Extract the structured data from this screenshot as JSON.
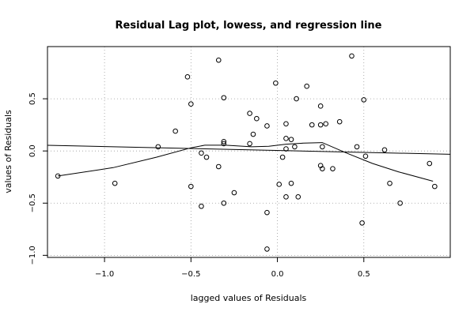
{
  "chart_data": {
    "type": "scatter",
    "title": "Residual Lag plot, lowess, and regression line",
    "xlabel": "lagged values of Residuals",
    "ylabel": "values of Residuals",
    "xlim": [
      -1.33,
      1.0
    ],
    "ylim": [
      -1.02,
      1.0
    ],
    "x_ticks": [
      {
        "value": -1.0,
        "label": "−1.0"
      },
      {
        "value": -0.5,
        "label": "−0.5"
      },
      {
        "value": 0.0,
        "label": "0.0"
      },
      {
        "value": 0.5,
        "label": "0.5"
      }
    ],
    "y_ticks": [
      {
        "value": -1.0,
        "label": "−1.0"
      },
      {
        "value": -0.5,
        "label": "−0.5"
      },
      {
        "value": 0.0,
        "label": "0.0"
      },
      {
        "value": 0.5,
        "label": "0.5"
      }
    ],
    "grid": true,
    "points": [
      [
        -1.27,
        -0.24
      ],
      [
        -0.94,
        -0.31
      ],
      [
        -0.69,
        0.04
      ],
      [
        -0.59,
        0.19
      ],
      [
        -0.52,
        0.71
      ],
      [
        -0.5,
        0.45
      ],
      [
        -0.5,
        -0.34
      ],
      [
        -0.44,
        -0.02
      ],
      [
        -0.44,
        -0.53
      ],
      [
        -0.41,
        -0.06
      ],
      [
        -0.34,
        0.87
      ],
      [
        -0.34,
        -0.15
      ],
      [
        -0.31,
        0.09
      ],
      [
        -0.31,
        0.07
      ],
      [
        -0.31,
        0.51
      ],
      [
        -0.31,
        -0.5
      ],
      [
        -0.25,
        -0.4
      ],
      [
        -0.16,
        0.36
      ],
      [
        -0.16,
        0.07
      ],
      [
        -0.14,
        0.16
      ],
      [
        -0.12,
        0.31
      ],
      [
        -0.06,
        0.24
      ],
      [
        -0.06,
        -0.59
      ],
      [
        -0.06,
        -0.94
      ],
      [
        -0.01,
        0.65
      ],
      [
        0.01,
        -0.32
      ],
      [
        0.03,
        -0.06
      ],
      [
        0.05,
        0.12
      ],
      [
        0.05,
        0.02
      ],
      [
        0.05,
        0.26
      ],
      [
        0.05,
        -0.44
      ],
      [
        0.08,
        0.11
      ],
      [
        0.08,
        -0.31
      ],
      [
        0.1,
        0.04
      ],
      [
        0.11,
        0.5
      ],
      [
        0.12,
        -0.44
      ],
      [
        0.17,
        0.62
      ],
      [
        0.2,
        0.25
      ],
      [
        0.25,
        0.43
      ],
      [
        0.25,
        0.25
      ],
      [
        0.25,
        -0.14
      ],
      [
        0.26,
        -0.17
      ],
      [
        0.26,
        0.04
      ],
      [
        0.28,
        0.26
      ],
      [
        0.32,
        -0.17
      ],
      [
        0.36,
        0.28
      ],
      [
        0.43,
        0.91
      ],
      [
        0.46,
        0.04
      ],
      [
        0.49,
        -0.69
      ],
      [
        0.5,
        0.49
      ],
      [
        0.51,
        -0.05
      ],
      [
        0.62,
        0.01
      ],
      [
        0.65,
        -0.31
      ],
      [
        0.71,
        -0.5
      ],
      [
        0.88,
        -0.12
      ],
      [
        0.91,
        -0.34
      ]
    ],
    "regression_line": [
      [
        -1.33,
        0.054
      ],
      [
        1.0,
        -0.032
      ]
    ],
    "lowess": [
      [
        -1.27,
        -0.24
      ],
      [
        -0.95,
        -0.16
      ],
      [
        -0.7,
        -0.06
      ],
      [
        -0.5,
        0.03
      ],
      [
        -0.42,
        0.055
      ],
      [
        -0.3,
        0.055
      ],
      [
        -0.15,
        0.04
      ],
      [
        -0.05,
        0.045
      ],
      [
        0.05,
        0.065
      ],
      [
        0.15,
        0.075
      ],
      [
        0.26,
        0.08
      ],
      [
        0.4,
        -0.02
      ],
      [
        0.55,
        -0.12
      ],
      [
        0.7,
        -0.2
      ],
      [
        0.9,
        -0.29
      ]
    ]
  }
}
